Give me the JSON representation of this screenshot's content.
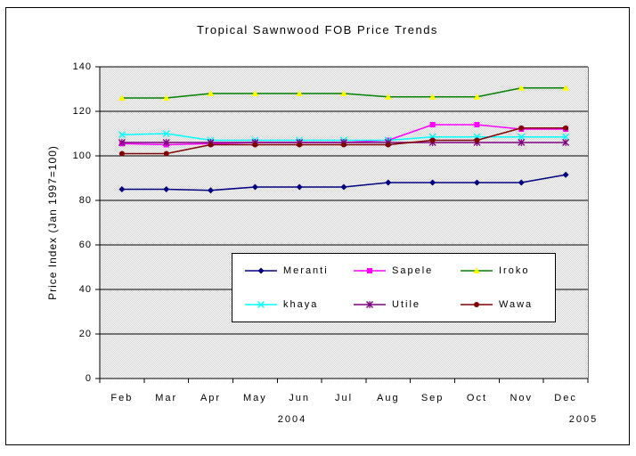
{
  "title": "Tropical Sawnwood FOB Price Trends",
  "y_axis": {
    "title": "Price Index (Jan 1997=100)",
    "ticks": [
      140,
      120,
      100,
      80,
      60,
      40,
      20,
      0
    ]
  },
  "x_axis": {
    "year_left": "2004",
    "year_right": "2005"
  },
  "chart_data": {
    "type": "line",
    "title": "Tropical Sawnwood FOB Price Trends",
    "ylabel": "Price Index (Jan 1997=100)",
    "categories": [
      "Feb",
      "Mar",
      "Apr",
      "May",
      "Jun",
      "Jul",
      "Aug",
      "Sep",
      "Oct",
      "Nov",
      "Dec"
    ],
    "ylim": [
      0,
      140
    ],
    "ytick_step": 20,
    "grid": true,
    "legend_position": "inside-bottom-center",
    "plot_background": "#dfdfdf",
    "series": [
      {
        "name": "Meranti",
        "color": "#000080",
        "marker": "diamond",
        "marker_color": "#000080",
        "values": [
          85,
          85,
          84.5,
          86,
          86,
          86,
          88,
          88,
          88,
          88,
          91.5
        ]
      },
      {
        "name": "Sapele",
        "color": "#ff00ff",
        "marker": "square",
        "marker_color": "#ff00ff",
        "values": [
          105.5,
          105,
          105.5,
          106,
          106,
          106,
          107,
          114,
          114,
          112,
          112
        ]
      },
      {
        "name": "Iroko",
        "color": "#008000",
        "marker": "triangle",
        "marker_color": "#ffff00",
        "values": [
          126,
          126,
          128,
          128,
          128,
          128,
          126.5,
          126.5,
          126.5,
          130.5,
          130.5
        ]
      },
      {
        "name": "khaya",
        "color": "#00ffff",
        "marker": "x",
        "marker_color": "#00ffff",
        "values": [
          109.5,
          110,
          107,
          107,
          107,
          107,
          107,
          108.5,
          108.5,
          108.5,
          108.5
        ]
      },
      {
        "name": "Utile",
        "color": "#800080",
        "marker": "star",
        "marker_color": "#800080",
        "values": [
          106,
          106,
          106,
          106,
          106,
          106,
          106,
          106,
          106,
          106,
          106
        ]
      },
      {
        "name": "Wawa",
        "color": "#800000",
        "marker": "circle",
        "marker_color": "#800000",
        "values": [
          101,
          101,
          105,
          105,
          105,
          105,
          105,
          107,
          107,
          112.5,
          112.5
        ]
      }
    ]
  }
}
